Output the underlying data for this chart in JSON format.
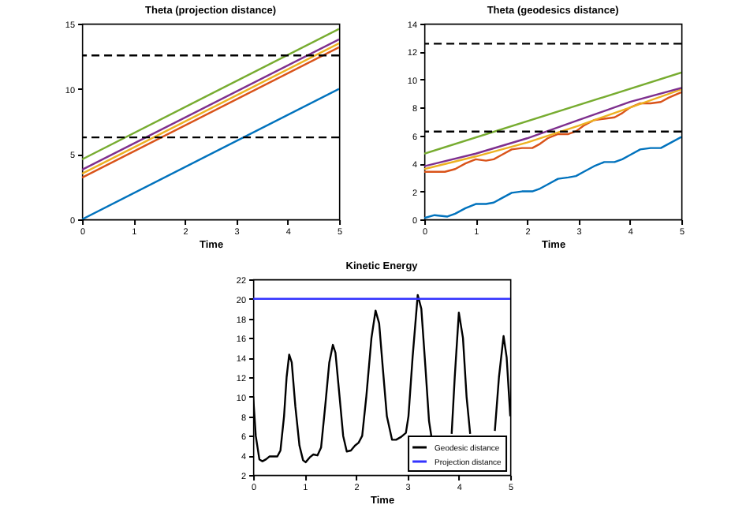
{
  "chart_data": [
    {
      "type": "line",
      "title": "Theta (projection distance)",
      "xlabel": "Time",
      "xlim": [
        0,
        5
      ],
      "xticks": [
        0,
        1,
        2,
        3,
        4,
        5
      ],
      "ylim": [
        0,
        15
      ],
      "yticks": [
        0,
        5,
        10,
        15
      ],
      "grid": false,
      "legend": false,
      "series": [
        {
          "color": "#0072bd",
          "x": [
            0,
            5
          ],
          "values": [
            0,
            10
          ]
        },
        {
          "color": "#d95319",
          "x": [
            0,
            5
          ],
          "values": [
            3.2,
            13.2
          ]
        },
        {
          "color": "#edb120",
          "x": [
            0,
            5
          ],
          "values": [
            3.5,
            13.5
          ]
        },
        {
          "color": "#7e2f8e",
          "x": [
            0,
            5
          ],
          "values": [
            3.8,
            13.8
          ]
        },
        {
          "color": "#77ac30",
          "x": [
            0,
            5
          ],
          "values": [
            4.6,
            14.6
          ]
        }
      ],
      "ref_lines": [
        {
          "axis": "y",
          "value": 6.28,
          "color": "#000000",
          "line_style": "dashed"
        },
        {
          "axis": "y",
          "value": 12.57,
          "color": "#000000",
          "line_style": "dashed"
        }
      ]
    },
    {
      "type": "line",
      "title": "Theta (geodesics distance)",
      "xlabel": "Time",
      "xlim": [
        0,
        5
      ],
      "xticks": [
        0,
        1,
        2,
        3,
        4,
        5
      ],
      "ylim": [
        0,
        14
      ],
      "yticks": [
        0,
        2,
        4,
        6,
        8,
        10,
        12,
        14
      ],
      "grid": false,
      "legend": false,
      "series": [
        {
          "color": "#0072bd",
          "x": [
            0,
            0.2,
            0.45,
            0.6,
            0.8,
            1.0,
            1.2,
            1.35,
            1.5,
            1.7,
            1.9,
            2.1,
            2.25,
            2.4,
            2.6,
            2.8,
            2.95,
            3.1,
            3.3,
            3.5,
            3.7,
            3.85,
            4.0,
            4.2,
            4.4,
            4.6,
            4.75,
            5.0
          ],
          "values": [
            0.1,
            0.3,
            0.2,
            0.4,
            0.8,
            1.1,
            1.1,
            1.2,
            1.5,
            1.9,
            2.0,
            2.0,
            2.2,
            2.5,
            2.9,
            3.0,
            3.1,
            3.4,
            3.8,
            4.1,
            4.1,
            4.3,
            4.6,
            5.0,
            5.1,
            5.1,
            5.4,
            5.9
          ]
        },
        {
          "color": "#d95319",
          "x": [
            0,
            0.2,
            0.4,
            0.6,
            0.8,
            1.0,
            1.2,
            1.35,
            1.5,
            1.7,
            1.9,
            2.1,
            2.25,
            2.4,
            2.6,
            2.8,
            2.95,
            3.1,
            3.3,
            3.5,
            3.7,
            3.85,
            4.0,
            4.2,
            4.4,
            4.6,
            4.75,
            5.0
          ],
          "values": [
            3.4,
            3.4,
            3.4,
            3.6,
            4.0,
            4.3,
            4.2,
            4.3,
            4.6,
            5.0,
            5.1,
            5.1,
            5.4,
            5.8,
            6.1,
            6.1,
            6.3,
            6.7,
            7.1,
            7.2,
            7.3,
            7.6,
            8.0,
            8.3,
            8.3,
            8.4,
            8.7,
            9.1
          ]
        },
        {
          "color": "#edb120",
          "x": [
            0,
            1,
            2,
            3,
            4,
            5
          ],
          "values": [
            3.6,
            4.5,
            5.5,
            6.7,
            8.0,
            9.3
          ]
        },
        {
          "color": "#7e2f8e",
          "x": [
            0,
            1,
            2,
            3,
            4,
            5
          ],
          "values": [
            3.8,
            4.7,
            5.8,
            7.1,
            8.4,
            9.4
          ]
        },
        {
          "color": "#77ac30",
          "x": [
            0,
            5
          ],
          "values": [
            4.7,
            10.5
          ]
        }
      ],
      "ref_lines": [
        {
          "axis": "y",
          "value": 6.28,
          "color": "#000000",
          "line_style": "dashed"
        },
        {
          "axis": "y",
          "value": 12.57,
          "color": "#000000",
          "line_style": "dashed"
        }
      ]
    },
    {
      "type": "line",
      "title": "Kinetic Energy",
      "xlabel": "Time",
      "xlim": [
        0,
        5
      ],
      "xticks": [
        0,
        1,
        2,
        3,
        4,
        5
      ],
      "ylim": [
        2,
        22
      ],
      "yticks": [
        2,
        4,
        6,
        8,
        10,
        12,
        14,
        16,
        18,
        20,
        22
      ],
      "grid": false,
      "legend": "bottom right",
      "series": [
        {
          "name": "Geodesic distance",
          "color": "#000000",
          "x": [
            0,
            0.05,
            0.12,
            0.18,
            0.25,
            0.32,
            0.4,
            0.47,
            0.53,
            0.6,
            0.65,
            0.7,
            0.75,
            0.82,
            0.9,
            0.97,
            1.02,
            1.1,
            1.17,
            1.25,
            1.32,
            1.4,
            1.48,
            1.55,
            1.6,
            1.68,
            1.75,
            1.82,
            1.9,
            1.98,
            2.05,
            2.12,
            2.2,
            2.3,
            2.38,
            2.45,
            2.52,
            2.6,
            2.7,
            2.78,
            2.88,
            2.97,
            3.02,
            3.1,
            3.2,
            3.27,
            3.35,
            3.42,
            3.47,
            3.6,
            3.8,
            3.86,
            3.92,
            4.0,
            4.08,
            4.15,
            4.22,
            4.4,
            4.65,
            4.7,
            4.78,
            4.87,
            4.93,
            5.0
          ],
          "values": [
            10,
            6,
            3.6,
            3.4,
            3.6,
            3.9,
            3.9,
            3.9,
            4.5,
            8,
            12,
            14.3,
            13.5,
            9,
            5,
            3.5,
            3.3,
            3.8,
            4.1,
            4.0,
            4.8,
            9,
            13.5,
            15.3,
            14.5,
            10,
            6,
            4.4,
            4.5,
            5.0,
            5.3,
            6,
            10,
            16,
            18.8,
            17.5,
            13,
            8,
            5.6,
            5.6,
            5.9,
            6.3,
            8,
            14,
            20.4,
            19,
            13,
            7.5,
            5.8,
            null,
            null,
            6.2,
            12,
            18.6,
            16,
            10,
            6.2,
            null,
            null,
            6.5,
            12,
            16.2,
            14,
            8
          ]
        },
        {
          "name": "Projection distance",
          "color": "#3333ff",
          "x": [
            0,
            5
          ],
          "values": [
            20,
            20
          ]
        }
      ]
    }
  ]
}
